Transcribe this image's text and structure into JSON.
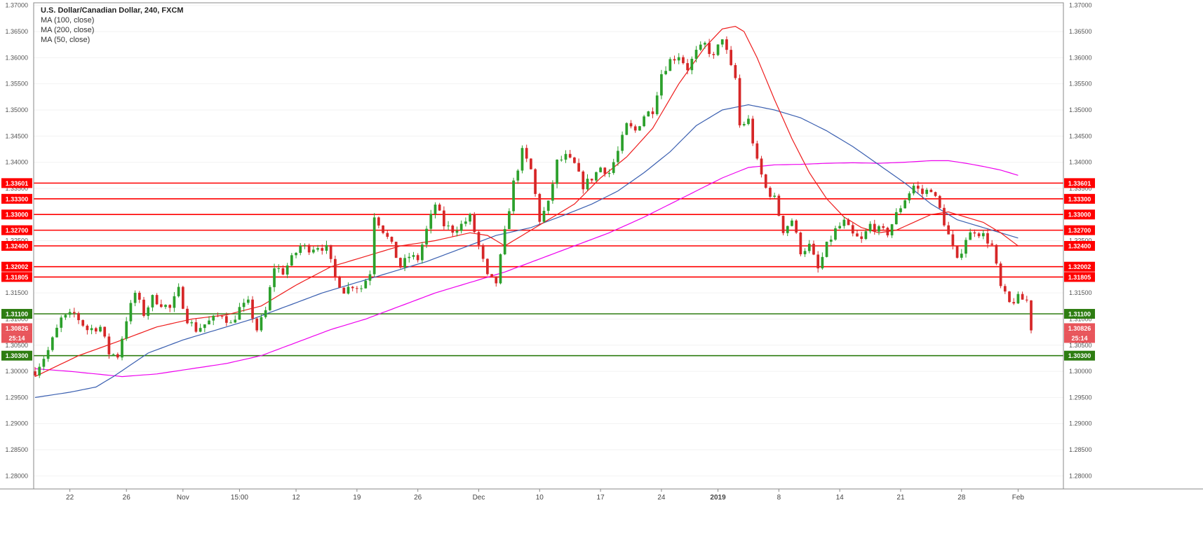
{
  "legend": {
    "title": "U.S. Dollar/Canadian Dollar, 240, FXCM",
    "ma1": "MA (100, close)",
    "ma2": "MA (200, close)",
    "ma3": "MA (50, close)"
  },
  "colors": {
    "up": "#2ca02c",
    "down": "#d62728",
    "ma50": "#ee1c1c",
    "ma100": "#3a5fb0",
    "ma200": "#ee00ee",
    "resistance": "#ff0000",
    "support": "#2e7d12",
    "price": "#e8555b"
  },
  "chart_data": {
    "type": "candlestick",
    "title": "U.S. Dollar/Canadian Dollar, 240, FXCM",
    "ylim": [
      1.2775,
      1.3705
    ],
    "y_ticks": [
      "1.28000",
      "1.28500",
      "1.29000",
      "1.29500",
      "1.30000",
      "1.30500",
      "1.31000",
      "1.31500",
      "1.32000",
      "1.32500",
      "1.33000",
      "1.33500",
      "1.34000",
      "1.34500",
      "1.35000",
      "1.35500",
      "1.36000",
      "1.36500",
      "1.37000"
    ],
    "x_ticks": [
      {
        "label": "22",
        "i": 8
      },
      {
        "label": "26",
        "i": 21
      },
      {
        "label": "Nov",
        "i": 34
      },
      {
        "label": "15:00",
        "i": 47
      },
      {
        "label": "12",
        "i": 60
      },
      {
        "label": "19",
        "i": 74
      },
      {
        "label": "26",
        "i": 88
      },
      {
        "label": "Dec",
        "i": 102
      },
      {
        "label": "10",
        "i": 116
      },
      {
        "label": "17",
        "i": 130
      },
      {
        "label": "24",
        "i": 144
      },
      {
        "label": "2019",
        "i": 157,
        "bold": true
      },
      {
        "label": "8",
        "i": 171
      },
      {
        "label": "14",
        "i": 185
      },
      {
        "label": "21",
        "i": 199
      },
      {
        "label": "28",
        "i": 213
      },
      {
        "label": "Feb",
        "i": 226
      }
    ],
    "n_bars": 230,
    "close_path": [
      [
        0,
        1.3
      ],
      [
        3,
        1.304
      ],
      [
        6,
        1.31
      ],
      [
        9,
        1.311
      ],
      [
        12,
        1.308
      ],
      [
        15,
        1.3085
      ],
      [
        17,
        1.3035
      ],
      [
        19,
        1.303
      ],
      [
        21,
        1.31
      ],
      [
        23,
        1.315
      ],
      [
        25,
        1.311
      ],
      [
        27,
        1.314
      ],
      [
        29,
        1.313
      ],
      [
        31,
        1.312
      ],
      [
        33,
        1.3155
      ],
      [
        35,
        1.31
      ],
      [
        37,
        1.308
      ],
      [
        39,
        1.309
      ],
      [
        41,
        1.31
      ],
      [
        43,
        1.311
      ],
      [
        45,
        1.309
      ],
      [
        47,
        1.312
      ],
      [
        49,
        1.313
      ],
      [
        51,
        1.308
      ],
      [
        53,
        1.3115
      ],
      [
        55,
        1.32
      ],
      [
        57,
        1.319
      ],
      [
        59,
        1.3215
      ],
      [
        61,
        1.324
      ],
      [
        63,
        1.3235
      ],
      [
        65,
        1.324
      ],
      [
        67,
        1.3235
      ],
      [
        69,
        1.318
      ],
      [
        71,
        1.3155
      ],
      [
        73,
        1.3165
      ],
      [
        75,
        1.316
      ],
      [
        77,
        1.319
      ],
      [
        78,
        1.33
      ],
      [
        80,
        1.327
      ],
      [
        82,
        1.324
      ],
      [
        84,
        1.32
      ],
      [
        86,
        1.322
      ],
      [
        88,
        1.3215
      ],
      [
        90,
        1.327
      ],
      [
        92,
        1.332
      ],
      [
        94,
        1.328
      ],
      [
        96,
        1.327
      ],
      [
        98,
        1.328
      ],
      [
        100,
        1.3295
      ],
      [
        102,
        1.324
      ],
      [
        104,
        1.318
      ],
      [
        106,
        1.317
      ],
      [
        108,
        1.3265
      ],
      [
        110,
        1.336
      ],
      [
        112,
        1.342
      ],
      [
        114,
        1.3385
      ],
      [
        116,
        1.329
      ],
      [
        118,
        1.332
      ],
      [
        120,
        1.34
      ],
      [
        122,
        1.341
      ],
      [
        124,
        1.3395
      ],
      [
        126,
        1.3355
      ],
      [
        128,
        1.337
      ],
      [
        130,
        1.339
      ],
      [
        132,
        1.338
      ],
      [
        134,
        1.342
      ],
      [
        136,
        1.347
      ],
      [
        138,
        1.346
      ],
      [
        140,
        1.349
      ],
      [
        142,
        1.35
      ],
      [
        144,
        1.357
      ],
      [
        146,
        1.3595
      ],
      [
        148,
        1.3605
      ],
      [
        150,
        1.358
      ],
      [
        152,
        1.361
      ],
      [
        154,
        1.3625
      ],
      [
        156,
        1.36
      ],
      [
        158,
        1.364
      ],
      [
        160,
        1.358
      ],
      [
        161,
        1.356
      ],
      [
        162,
        1.347
      ],
      [
        164,
        1.348
      ],
      [
        166,
        1.34
      ],
      [
        168,
        1.335
      ],
      [
        170,
        1.333
      ],
      [
        172,
        1.327
      ],
      [
        174,
        1.329
      ],
      [
        176,
        1.323
      ],
      [
        178,
        1.324
      ],
      [
        180,
        1.3195
      ],
      [
        182,
        1.324
      ],
      [
        184,
        1.327
      ],
      [
        186,
        1.3285
      ],
      [
        188,
        1.326
      ],
      [
        190,
        1.325
      ],
      [
        192,
        1.328
      ],
      [
        194,
        1.327
      ],
      [
        196,
        1.3265
      ],
      [
        198,
        1.33
      ],
      [
        200,
        1.333
      ],
      [
        202,
        1.3355
      ],
      [
        204,
        1.334
      ],
      [
        206,
        1.335
      ],
      [
        208,
        1.331
      ],
      [
        210,
        1.326
      ],
      [
        212,
        1.321
      ],
      [
        214,
        1.3255
      ],
      [
        216,
        1.327
      ],
      [
        218,
        1.326
      ],
      [
        220,
        1.324
      ],
      [
        222,
        1.316
      ],
      [
        224,
        1.313
      ],
      [
        226,
        1.314
      ],
      [
        228,
        1.3135
      ],
      [
        229,
        1.3083
      ]
    ],
    "ma50_path": [
      [
        0,
        1.299
      ],
      [
        10,
        1.303
      ],
      [
        20,
        1.306
      ],
      [
        28,
        1.3085
      ],
      [
        36,
        1.31
      ],
      [
        44,
        1.3108
      ],
      [
        52,
        1.3125
      ],
      [
        60,
        1.3165
      ],
      [
        68,
        1.32
      ],
      [
        76,
        1.322
      ],
      [
        84,
        1.324
      ],
      [
        92,
        1.325
      ],
      [
        100,
        1.3265
      ],
      [
        104,
        1.326
      ],
      [
        108,
        1.324
      ],
      [
        112,
        1.326
      ],
      [
        118,
        1.329
      ],
      [
        124,
        1.332
      ],
      [
        130,
        1.337
      ],
      [
        136,
        1.341
      ],
      [
        142,
        1.3465
      ],
      [
        148,
        1.355
      ],
      [
        154,
        1.362
      ],
      [
        158,
        1.3655
      ],
      [
        161,
        1.366
      ],
      [
        163,
        1.365
      ],
      [
        166,
        1.36
      ],
      [
        170,
        1.352
      ],
      [
        174,
        1.3445
      ],
      [
        178,
        1.338
      ],
      [
        182,
        1.333
      ],
      [
        186,
        1.3295
      ],
      [
        190,
        1.3275
      ],
      [
        194,
        1.3265
      ],
      [
        198,
        1.327
      ],
      [
        202,
        1.3285
      ],
      [
        206,
        1.33
      ],
      [
        210,
        1.3305
      ],
      [
        214,
        1.3295
      ],
      [
        218,
        1.3285
      ],
      [
        222,
        1.3265
      ],
      [
        226,
        1.324
      ]
    ],
    "ma100_path": [
      [
        0,
        1.295
      ],
      [
        8,
        1.296
      ],
      [
        14,
        1.297
      ],
      [
        18,
        1.299
      ],
      [
        26,
        1.3035
      ],
      [
        34,
        1.306
      ],
      [
        42,
        1.308
      ],
      [
        50,
        1.31
      ],
      [
        58,
        1.3125
      ],
      [
        66,
        1.315
      ],
      [
        74,
        1.317
      ],
      [
        82,
        1.319
      ],
      [
        90,
        1.321
      ],
      [
        98,
        1.3235
      ],
      [
        106,
        1.326
      ],
      [
        114,
        1.3275
      ],
      [
        122,
        1.33
      ],
      [
        128,
        1.332
      ],
      [
        134,
        1.3345
      ],
      [
        140,
        1.338
      ],
      [
        146,
        1.342
      ],
      [
        152,
        1.347
      ],
      [
        158,
        1.35
      ],
      [
        164,
        1.351
      ],
      [
        170,
        1.35
      ],
      [
        176,
        1.3485
      ],
      [
        182,
        1.346
      ],
      [
        188,
        1.343
      ],
      [
        194,
        1.3395
      ],
      [
        200,
        1.336
      ],
      [
        206,
        1.332
      ],
      [
        212,
        1.329
      ],
      [
        218,
        1.3275
      ],
      [
        222,
        1.3265
      ],
      [
        226,
        1.3255
      ]
    ],
    "ma200_path": [
      [
        0,
        1.3005
      ],
      [
        8,
        1.3
      ],
      [
        14,
        1.2995
      ],
      [
        20,
        1.299
      ],
      [
        28,
        1.2995
      ],
      [
        36,
        1.3005
      ],
      [
        44,
        1.3015
      ],
      [
        52,
        1.303
      ],
      [
        60,
        1.3055
      ],
      [
        68,
        1.308
      ],
      [
        76,
        1.31
      ],
      [
        84,
        1.3125
      ],
      [
        92,
        1.315
      ],
      [
        100,
        1.317
      ],
      [
        108,
        1.319
      ],
      [
        116,
        1.3215
      ],
      [
        124,
        1.324
      ],
      [
        132,
        1.3265
      ],
      [
        140,
        1.3295
      ],
      [
        146,
        1.332
      ],
      [
        152,
        1.3345
      ],
      [
        158,
        1.337
      ],
      [
        164,
        1.339
      ],
      [
        170,
        1.3395
      ],
      [
        176,
        1.3396
      ],
      [
        182,
        1.3398
      ],
      [
        188,
        1.3399
      ],
      [
        194,
        1.3398
      ],
      [
        200,
        1.34
      ],
      [
        206,
        1.3403
      ],
      [
        210,
        1.3403
      ],
      [
        214,
        1.3398
      ],
      [
        218,
        1.3392
      ],
      [
        222,
        1.3385
      ],
      [
        226,
        1.3375
      ]
    ],
    "levels": [
      {
        "label": "1.33601",
        "value": 1.33601,
        "kind": "resistance"
      },
      {
        "label": "1.33300",
        "value": 1.333,
        "kind": "resistance"
      },
      {
        "label": "1.33000",
        "value": 1.33,
        "kind": "resistance"
      },
      {
        "label": "1.32700",
        "value": 1.327,
        "kind": "resistance"
      },
      {
        "label": "1.32400",
        "value": 1.324,
        "kind": "resistance"
      },
      {
        "label": "1.32002",
        "value": 1.32002,
        "kind": "resistance"
      },
      {
        "label": "1.31805",
        "value": 1.31805,
        "kind": "resistance"
      },
      {
        "label": "1.31100",
        "value": 1.311,
        "kind": "support"
      },
      {
        "label": "1.30300",
        "value": 1.303,
        "kind": "support"
      }
    ],
    "current_price": {
      "label": "1.30826",
      "value": 1.30826,
      "countdown": "25:14"
    }
  }
}
